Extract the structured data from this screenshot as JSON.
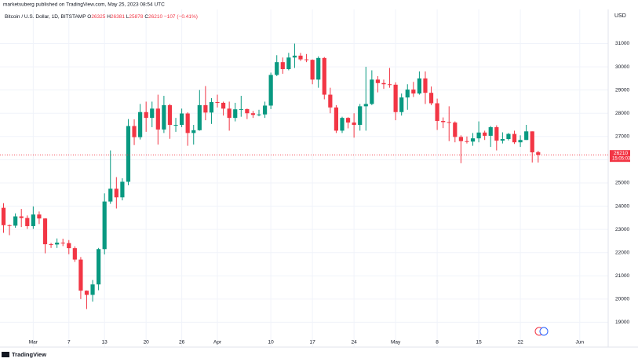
{
  "header": {
    "published": "marketsuberg published on TradingView.com, May 25, 2023 08:54 UTC",
    "symbol": "Bitcoin / U.S. Dollar, 1D, BITSTAMP",
    "ohlc_labels": [
      "O",
      "H",
      "L",
      "C"
    ],
    "change": "−107 (−0.41%)"
  },
  "currency": "USD",
  "countdown": "15:05:03",
  "footer": "TradingView",
  "chart_data": {
    "type": "candlestick",
    "up_color": "#089981",
    "down_color": "#f23645",
    "grid": true,
    "categories": [
      "Feb 24",
      "Feb 25",
      "Feb 26",
      "Feb 27",
      "Feb 28",
      "Mar 1",
      "Mar 2",
      "Mar 3",
      "Mar 4",
      "Mar 5",
      "Mar 6",
      "Mar 7",
      "Mar 8",
      "Mar 9",
      "Mar 10",
      "Mar 11",
      "Mar 12",
      "Mar 13",
      "Mar 14",
      "Mar 15",
      "Mar 16",
      "Mar 17",
      "Mar 18",
      "Mar 19",
      "Mar 20",
      "Mar 21",
      "Mar 22",
      "Mar 23",
      "Mar 24",
      "Mar 25",
      "Mar 26",
      "Mar 27",
      "Mar 28",
      "Mar 29",
      "Mar 30",
      "Mar 31",
      "Apr 1",
      "Apr 2",
      "Apr 3",
      "Apr 4",
      "Apr 5",
      "Apr 6",
      "Apr 7",
      "Apr 8",
      "Apr 9",
      "Apr 10",
      "Apr 11",
      "Apr 12",
      "Apr 13",
      "Apr 14",
      "Apr 15",
      "Apr 16",
      "Apr 17",
      "Apr 18",
      "Apr 19",
      "Apr 20",
      "Apr 21",
      "Apr 22",
      "Apr 23",
      "Apr 24",
      "Apr 25",
      "Apr 26",
      "Apr 27",
      "Apr 28",
      "Apr 29",
      "Apr 30",
      "May 1",
      "May 2",
      "May 3",
      "May 4",
      "May 5",
      "May 6",
      "May 7",
      "May 8",
      "May 9",
      "May 10",
      "May 11",
      "May 12",
      "May 13",
      "May 14",
      "May 15",
      "May 16",
      "May 17",
      "May 18",
      "May 19",
      "May 20",
      "May 21",
      "May 22",
      "May 23",
      "May 24",
      "May 25",
      "May 26",
      "May 27",
      "May 28",
      "May 29",
      "May 30",
      "May 31",
      "Jun 1"
    ],
    "open": [
      23930,
      23180,
      23160,
      23560,
      23490,
      23140,
      23640,
      23470,
      22360,
      22350,
      22430,
      22410,
      22190,
      21700,
      20360,
      20180,
      20630,
      22150,
      24200,
      24750,
      24380,
      25050,
      27450,
      26970,
      28050,
      27800,
      28200,
      27300,
      28350,
      27500,
      27500,
      27990,
      27150,
      27270,
      28350,
      28030,
      28480,
      28450,
      28200,
      27800,
      28170,
      28180,
      28000,
      27930,
      27950,
      28330,
      29650,
      30200,
      29900,
      30400,
      30480,
      30320,
      30300,
      29450,
      30380,
      28800,
      28250,
      27250,
      27800,
      27600,
      27500,
      28300,
      28400,
      29450,
      29300,
      29250,
      29230,
      28050,
      28680,
      29020,
      28850,
      29500,
      28880,
      28430,
      27670,
      27620,
      27600,
      26980,
      26800,
      26780,
      26920,
      27170,
      27030,
      27400,
      26820,
      26890,
      27110,
      26750,
      26850,
      27220,
      26325,
      null,
      null,
      null,
      null,
      null,
      null,
      null
    ],
    "high": [
      24130,
      23210,
      23690,
      23880,
      23600,
      23990,
      23770,
      23480,
      22420,
      22610,
      22600,
      22540,
      22270,
      21810,
      20370,
      20820,
      22200,
      24550,
      26400,
      25250,
      25200,
      27750,
      27740,
      28400,
      28500,
      28500,
      28800,
      28750,
      28400,
      27800,
      28200,
      28040,
      27500,
      29000,
      29170,
      28650,
      28800,
      28500,
      28500,
      28450,
      28750,
      28200,
      28100,
      28150,
      28500,
      29750,
      30500,
      30400,
      30600,
      31000,
      30600,
      30550,
      30320,
      30450,
      30420,
      29100,
      28350,
      27850,
      27830,
      28000,
      28400,
      30000,
      29850,
      29600,
      29450,
      29950,
      29330,
      28850,
      29250,
      29350,
      29800,
      29800,
      29150,
      28630,
      27820,
      28300,
      27650,
      27050,
      27000,
      27150,
      27650,
      27250,
      27450,
      27480,
      27180,
      27150,
      27250,
      27050,
      27500,
      27220,
      26381,
      null,
      null,
      null,
      null,
      null,
      null,
      null
    ],
    "low": [
      22850,
      22750,
      23070,
      23100,
      23020,
      23020,
      23230,
      21970,
      22200,
      22200,
      22280,
      21930,
      21600,
      20000,
      19570,
      19890,
      20380,
      21920,
      24100,
      23900,
      24250,
      24900,
      26630,
      26870,
      27200,
      27400,
      26650,
      27150,
      26900,
      27200,
      27400,
      26600,
      26650,
      27250,
      27700,
      27540,
      28250,
      27900,
      27250,
      27650,
      27850,
      27750,
      27800,
      27870,
      27800,
      28180,
      29600,
      29700,
      29850,
      29950,
      30250,
      30200,
      29250,
      29100,
      28600,
      28000,
      27150,
      27150,
      27350,
      26950,
      27250,
      27250,
      28350,
      28900,
      29050,
      29100,
      27700,
      27900,
      28150,
      28700,
      28800,
      28400,
      28350,
      27280,
      27360,
      26800,
      26750,
      25850,
      26700,
      26600,
      26750,
      26850,
      26550,
      26400,
      26700,
      26830,
      26680,
      26550,
      26850,
      25880,
      25878,
      null,
      null,
      null,
      null,
      null,
      null,
      null
    ],
    "close": [
      23180,
      23160,
      23560,
      23490,
      23140,
      23640,
      23470,
      22360,
      22350,
      22430,
      22410,
      22190,
      21700,
      20360,
      20180,
      20630,
      22150,
      24200,
      24750,
      24380,
      25050,
      27450,
      26970,
      28050,
      27800,
      28200,
      27300,
      28350,
      27500,
      27500,
      27990,
      27150,
      27270,
      28350,
      28030,
      28480,
      28450,
      28200,
      27800,
      28170,
      28180,
      28000,
      27930,
      27950,
      28330,
      29650,
      30200,
      29900,
      30400,
      30480,
      30320,
      30300,
      29450,
      30380,
      28800,
      28250,
      27250,
      27800,
      27600,
      27500,
      28300,
      28400,
      29450,
      29300,
      29250,
      29230,
      28050,
      28680,
      29020,
      28850,
      29500,
      28880,
      28430,
      27670,
      27620,
      27600,
      26980,
      26800,
      26780,
      26920,
      27170,
      27030,
      27400,
      26820,
      26890,
      27110,
      26750,
      26850,
      27220,
      26317,
      26210,
      null,
      null,
      null,
      null,
      null,
      null,
      null
    ],
    "ylim": [
      18000,
      32200
    ],
    "yticks": [
      19000,
      20000,
      21000,
      22000,
      23000,
      24000,
      25000,
      26000,
      27000,
      28000,
      29000,
      30000,
      31000
    ],
    "xticks": [
      {
        "value": "Mar 1",
        "label": "Mar"
      },
      {
        "value": "Mar 7",
        "label": "7"
      },
      {
        "value": "Mar 13",
        "label": "13"
      },
      {
        "value": "Mar 20",
        "label": "20"
      },
      {
        "value": "Mar 26",
        "label": "26"
      },
      {
        "value": "Apr 1",
        "label": "Apr"
      },
      {
        "value": "Apr 10",
        "label": "10"
      },
      {
        "value": "Apr 17",
        "label": "17"
      },
      {
        "value": "Apr 24",
        "label": "24"
      },
      {
        "value": "May 1",
        "label": "May"
      },
      {
        "value": "May 8",
        "label": "8"
      },
      {
        "value": "May 15",
        "label": "15"
      },
      {
        "value": "May 22",
        "label": "22"
      },
      {
        "value": "Jun 1",
        "label": "Jun"
      }
    ]
  }
}
